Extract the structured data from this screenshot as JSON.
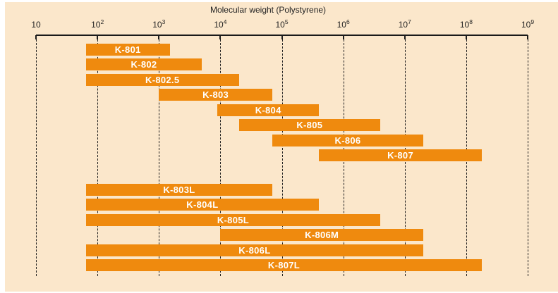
{
  "chart_data": {
    "type": "bar",
    "orientation": "horizontal-range",
    "title": "Molecular weight (Polystyrene)",
    "x_axis": {
      "scale": "log10",
      "min": 10,
      "max": 1000000000,
      "tick_base": "10",
      "tick_exponents": [
        1,
        2,
        3,
        4,
        5,
        6,
        7,
        8,
        9
      ]
    },
    "grid": "vertical-dashed",
    "legend_position": "none",
    "bars": [
      {
        "label": "K-801",
        "mw_min": 65,
        "mw_max": 1500,
        "group": 1
      },
      {
        "label": "K-802",
        "mw_min": 65,
        "mw_max": 5000,
        "group": 1
      },
      {
        "label": "K-802.5",
        "mw_min": 65,
        "mw_max": 20000,
        "group": 1
      },
      {
        "label": "K-803",
        "mw_min": 1000,
        "mw_max": 70000,
        "group": 1
      },
      {
        "label": "K-804",
        "mw_min": 9000,
        "mw_max": 400000,
        "group": 1
      },
      {
        "label": "K-805",
        "mw_min": 20000,
        "mw_max": 4000000,
        "group": 1
      },
      {
        "label": "K-806",
        "mw_min": 70000,
        "mw_max": 20000000,
        "group": 1
      },
      {
        "label": "K-807",
        "mw_min": 400000,
        "mw_max": 180000000,
        "group": 1
      },
      {
        "label": "K-803L",
        "mw_min": 65,
        "mw_max": 70000,
        "group": 2
      },
      {
        "label": "K-804L",
        "mw_min": 65,
        "mw_max": 400000,
        "group": 2
      },
      {
        "label": "K-805L",
        "mw_min": 65,
        "mw_max": 4000000,
        "group": 2
      },
      {
        "label": "K-806M",
        "mw_min": 10000,
        "mw_max": 20000000,
        "group": 2
      },
      {
        "label": "K-806L",
        "mw_min": 65,
        "mw_max": 20000000,
        "group": 2
      },
      {
        "label": "K-807L",
        "mw_min": 65,
        "mw_max": 180000000,
        "group": 2
      }
    ]
  },
  "colors": {
    "bar_orange": "#ef8a0e",
    "panel_background": "#fbe7cb",
    "bar_label_text": "#ffffff",
    "axis_text": "#1f1f1f"
  }
}
